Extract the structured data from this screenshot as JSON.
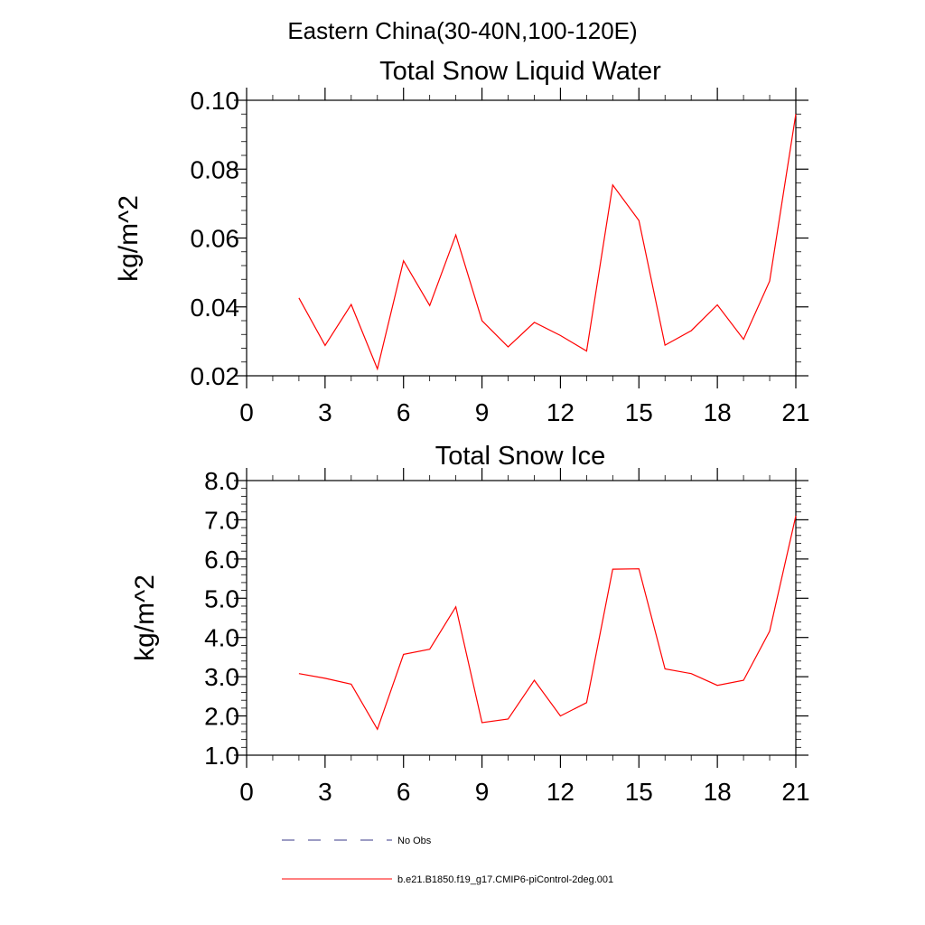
{
  "figure": {
    "title": "Eastern China(30-40N,100-120E)"
  },
  "colors": {
    "model_line": "#ff0000",
    "obs_line": "#3a3a8a",
    "axis": "#000000"
  },
  "chart_data": [
    {
      "type": "line",
      "title": "Total Snow Liquid Water",
      "xlabel": "",
      "ylabel": "kg/m^2",
      "xlim": [
        0,
        21
      ],
      "ylim": [
        0.02,
        0.1
      ],
      "x_ticks": [
        0,
        3,
        6,
        9,
        12,
        15,
        18,
        21
      ],
      "x_tick_labels": [
        "0",
        "3",
        "6",
        "9",
        "12",
        "15",
        "18",
        "21"
      ],
      "y_ticks": [
        0.02,
        0.04,
        0.06,
        0.08,
        0.1
      ],
      "y_tick_labels": [
        "0.02",
        "0.04",
        "0.06",
        "0.08",
        "0.10"
      ],
      "y_minor_step": 0.004,
      "x_minor_step": 1,
      "grid": false,
      "series": [
        {
          "name": "b.e21.B1850.f19_g17.CMIP6-piControl-2deg.001",
          "color": "#ff0000",
          "x": [
            2,
            3,
            4,
            5,
            6,
            7,
            8,
            9,
            10,
            11,
            12,
            13,
            14,
            15,
            16,
            17,
            18,
            19,
            20,
            21
          ],
          "y": [
            0.0426,
            0.0288,
            0.0407,
            0.022,
            0.0534,
            0.0404,
            0.0609,
            0.036,
            0.0284,
            0.0355,
            0.0317,
            0.0272,
            0.0754,
            0.0651,
            0.0289,
            0.0331,
            0.0406,
            0.0306,
            0.0475,
            0.096
          ]
        }
      ]
    },
    {
      "type": "line",
      "title": "Total Snow Ice",
      "xlabel": "",
      "ylabel": "kg/m^2",
      "xlim": [
        0,
        21
      ],
      "ylim": [
        1.0,
        8.0
      ],
      "x_ticks": [
        0,
        3,
        6,
        9,
        12,
        15,
        18,
        21
      ],
      "x_tick_labels": [
        "0",
        "3",
        "6",
        "9",
        "12",
        "15",
        "18",
        "21"
      ],
      "y_ticks": [
        1.0,
        2.0,
        3.0,
        4.0,
        5.0,
        6.0,
        7.0,
        8.0
      ],
      "y_tick_labels": [
        "1.0",
        "2.0",
        "3.0",
        "4.0",
        "5.0",
        "6.0",
        "7.0",
        "8.0"
      ],
      "y_minor_step": 0.2,
      "x_minor_step": 1,
      "grid": false,
      "series": [
        {
          "name": "b.e21.B1850.f19_g17.CMIP6-piControl-2deg.001",
          "color": "#ff0000",
          "x": [
            2,
            3,
            4,
            5,
            6,
            7,
            8,
            9,
            10,
            11,
            12,
            13,
            14,
            15,
            16,
            17,
            18,
            19,
            20,
            21
          ],
          "y": [
            3.08,
            2.96,
            2.81,
            1.66,
            3.57,
            3.7,
            4.78,
            1.83,
            1.92,
            2.91,
            2.0,
            2.34,
            5.74,
            5.75,
            3.2,
            3.08,
            2.78,
            2.91,
            4.16,
            7.1
          ]
        }
      ]
    }
  ],
  "legend": {
    "placement": "bottom-left",
    "items": [
      {
        "label": "No Obs",
        "style": "dashed",
        "color": "#3a3a8a"
      },
      {
        "label": "b.e21.B1850.f19_g17.CMIP6-piControl-2deg.001",
        "style": "solid",
        "color": "#ff0000"
      }
    ]
  }
}
